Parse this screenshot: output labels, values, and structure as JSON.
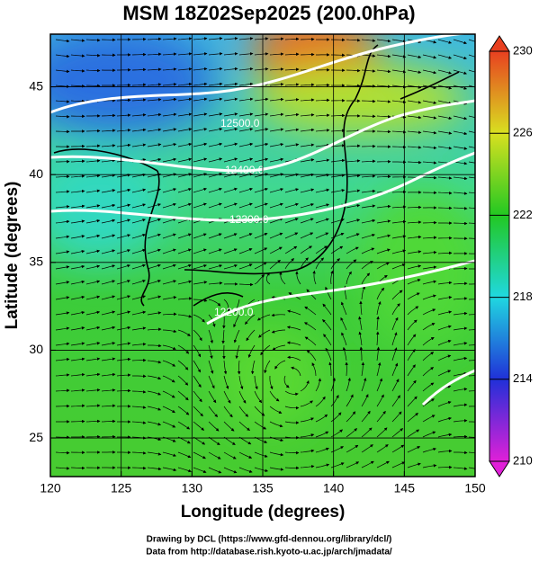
{
  "chart_data": {
    "type": "map",
    "title": "MSM 18Z02Sep2025 (200.0hPa)",
    "xlabel": "Longitude (degrees)",
    "ylabel": "Latitude  (degrees)",
    "xlim": [
      120,
      150
    ],
    "xticks": [
      120,
      125,
      130,
      135,
      140,
      145,
      150
    ],
    "ylim": [
      22.8,
      48
    ],
    "yticks": [
      25,
      30,
      35,
      40,
      45
    ],
    "grid": true,
    "contour_labels": [
      "12500.0",
      "12400.0",
      "12300.0",
      "12200.0"
    ],
    "colorbar": {
      "lim": [
        210,
        230
      ],
      "ticks": [
        210,
        214,
        218,
        222,
        226,
        230
      ]
    }
  },
  "credits": [
    "Drawing by DCL (https://www.gfd-dennou.org/library/dcl/)",
    "Data from http://database.rish.kyoto-u.ac.jp/arch/jmadata/"
  ]
}
